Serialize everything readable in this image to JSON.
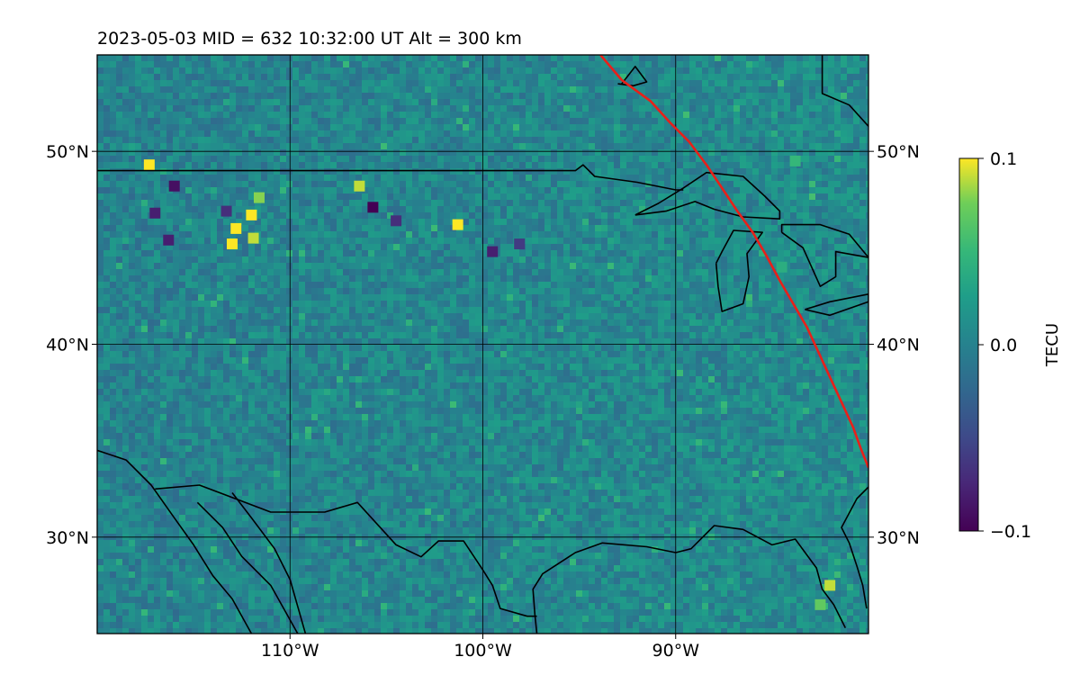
{
  "chart_data": {
    "type": "heatmap",
    "title": "2023-05-03  MID = 632    10:32:00  UT  Alt = 300 km",
    "x_range": [
      -120,
      -80
    ],
    "y_range": [
      25,
      55
    ],
    "x_ticks": [
      {
        "value": -110,
        "label": "110°W"
      },
      {
        "value": -100,
        "label": "100°W"
      },
      {
        "value": -90,
        "label": "90°W"
      }
    ],
    "y_ticks": [
      {
        "value": 50,
        "label": "50°N"
      },
      {
        "value": 40,
        "label": "40°N"
      },
      {
        "value": 30,
        "label": "30°N"
      }
    ],
    "grid": true,
    "colorbar": {
      "label": "TECU",
      "range": [
        -0.1,
        0.1
      ],
      "ticks": [
        {
          "value": 0.1,
          "label": "0.1"
        },
        {
          "value": 0.0,
          "label": "0.0"
        },
        {
          "value": -0.1,
          "label": "−0.1"
        }
      ],
      "colormap": "viridis"
    },
    "terminator": {
      "color": "#e8201a",
      "points": [
        [
          -93.9,
          55
        ],
        [
          -92.8,
          53.7
        ],
        [
          -91.3,
          52.6
        ],
        [
          -90.3,
          51.5
        ],
        [
          -89.3,
          50.5
        ],
        [
          -88.4,
          49.3
        ],
        [
          -87.6,
          48.1
        ],
        [
          -86.8,
          46.9
        ],
        [
          -86.0,
          45.8
        ],
        [
          -85.3,
          44.6
        ],
        [
          -84.6,
          43.3
        ],
        [
          -83.9,
          42.1
        ],
        [
          -83.2,
          40.9
        ],
        [
          -82.6,
          39.6
        ],
        [
          -82.0,
          38.3
        ],
        [
          -81.4,
          37.0
        ],
        [
          -80.8,
          35.7
        ],
        [
          -80.4,
          34.6
        ],
        [
          -80.0,
          33.6
        ]
      ]
    },
    "anomalies": [
      {
        "lon": -117.3,
        "lat": 49.3,
        "value": 0.1
      },
      {
        "lon": -112.8,
        "lat": 46.0,
        "value": 0.1
      },
      {
        "lon": -112.0,
        "lat": 46.7,
        "value": 0.1
      },
      {
        "lon": -113.0,
        "lat": 45.2,
        "value": 0.1
      },
      {
        "lon": -111.9,
        "lat": 45.5,
        "value": 0.09
      },
      {
        "lon": -111.6,
        "lat": 47.6,
        "value": 0.08
      },
      {
        "lon": -106.4,
        "lat": 48.2,
        "value": 0.09
      },
      {
        "lon": -101.3,
        "lat": 46.2,
        "value": 0.1
      },
      {
        "lon": -105.7,
        "lat": 47.1,
        "value": -0.1
      },
      {
        "lon": -116.0,
        "lat": 48.2,
        "value": -0.09
      },
      {
        "lon": -117.0,
        "lat": 46.8,
        "value": -0.08
      },
      {
        "lon": -116.3,
        "lat": 45.4,
        "value": -0.08
      },
      {
        "lon": -113.3,
        "lat": 46.9,
        "value": -0.07
      },
      {
        "lon": -104.5,
        "lat": 46.4,
        "value": -0.07
      },
      {
        "lon": -99.5,
        "lat": 44.8,
        "value": -0.08
      },
      {
        "lon": -98.1,
        "lat": 45.2,
        "value": -0.06
      },
      {
        "lon": -82.0,
        "lat": 27.5,
        "value": 0.09
      },
      {
        "lon": -82.5,
        "lat": 26.5,
        "value": 0.07
      },
      {
        "lon": -83.8,
        "lat": 49.5,
        "value": 0.05
      },
      {
        "lon": -84.5,
        "lat": 44.0,
        "value": 0.04
      }
    ],
    "coastlines": [
      {
        "name": "us-canada-border",
        "points": [
          [
            -120,
            49.0
          ],
          [
            -95.2,
            49.0
          ],
          [
            -94.8,
            49.3
          ],
          [
            -94.2,
            48.7
          ],
          [
            -92.0,
            48.4
          ],
          [
            -90.0,
            48.0
          ],
          [
            -89.6,
            48.0
          ]
        ]
      },
      {
        "name": "hudson-bay-coast",
        "points": [
          [
            -92.8,
            53.5
          ],
          [
            -92.1,
            54.4
          ],
          [
            -91.5,
            53.6
          ],
          [
            -92.2,
            53.4
          ],
          [
            -93.0,
            53.5
          ]
        ]
      },
      {
        "name": "james-bay-coast",
        "points": [
          [
            -82.4,
            55
          ],
          [
            -82.4,
            53.0
          ],
          [
            -81.0,
            52.4
          ],
          [
            -80.0,
            51.3
          ]
        ]
      },
      {
        "name": "lake-superior",
        "points": [
          [
            -92.1,
            46.7
          ],
          [
            -90.5,
            46.9
          ],
          [
            -89.0,
            47.4
          ],
          [
            -88.0,
            47.0
          ],
          [
            -86.5,
            46.6
          ],
          [
            -84.6,
            46.5
          ],
          [
            -84.6,
            46.9
          ],
          [
            -85.4,
            47.7
          ],
          [
            -86.5,
            48.7
          ],
          [
            -88.4,
            48.9
          ],
          [
            -89.6,
            48.1
          ],
          [
            -90.9,
            47.3
          ],
          [
            -92.1,
            46.7
          ]
        ]
      },
      {
        "name": "lake-michigan",
        "points": [
          [
            -87.9,
            44.2
          ],
          [
            -87.8,
            43.0
          ],
          [
            -87.6,
            41.7
          ],
          [
            -86.5,
            42.1
          ],
          [
            -86.2,
            43.5
          ],
          [
            -86.3,
            44.7
          ],
          [
            -85.5,
            45.8
          ],
          [
            -87.0,
            45.9
          ],
          [
            -87.6,
            44.8
          ],
          [
            -87.9,
            44.2
          ]
        ]
      },
      {
        "name": "lake-huron",
        "points": [
          [
            -84.5,
            45.8
          ],
          [
            -83.4,
            45.0
          ],
          [
            -82.5,
            43.0
          ],
          [
            -81.7,
            43.5
          ],
          [
            -81.7,
            44.8
          ],
          [
            -80.0,
            44.5
          ],
          [
            -81.0,
            45.7
          ],
          [
            -82.5,
            46.2
          ],
          [
            -84.5,
            46.2
          ],
          [
            -84.5,
            45.8
          ]
        ]
      },
      {
        "name": "lake-erie",
        "points": [
          [
            -83.3,
            41.8
          ],
          [
            -82.0,
            41.5
          ],
          [
            -80.0,
            42.2
          ],
          [
            -80.0,
            42.6
          ],
          [
            -82.0,
            42.2
          ],
          [
            -83.3,
            41.8
          ]
        ]
      },
      {
        "name": "us-mexico-border",
        "points": [
          [
            -117.0,
            32.5
          ],
          [
            -114.7,
            32.7
          ],
          [
            -111.0,
            31.3
          ],
          [
            -108.2,
            31.3
          ],
          [
            -106.5,
            31.8
          ],
          [
            -104.5,
            29.6
          ],
          [
            -103.2,
            28.98
          ],
          [
            -102.3,
            29.8
          ],
          [
            -101.0,
            29.8
          ],
          [
            -100.0,
            28.3
          ],
          [
            -99.5,
            27.5
          ],
          [
            -99.1,
            26.3
          ],
          [
            -97.7,
            25.9
          ],
          [
            -97.2,
            25.9
          ]
        ]
      },
      {
        "name": "gulf-coast",
        "points": [
          [
            -97.2,
            25.0
          ],
          [
            -97.3,
            26.0
          ],
          [
            -97.4,
            27.3
          ],
          [
            -96.9,
            28.1
          ],
          [
            -95.2,
            29.2
          ],
          [
            -93.8,
            29.7
          ],
          [
            -91.5,
            29.5
          ],
          [
            -90.0,
            29.2
          ],
          [
            -89.2,
            29.4
          ],
          [
            -88.0,
            30.6
          ],
          [
            -86.5,
            30.4
          ],
          [
            -85.0,
            29.6
          ],
          [
            -83.8,
            29.9
          ],
          [
            -82.7,
            28.4
          ],
          [
            -82.4,
            27.3
          ],
          [
            -81.8,
            26.5
          ],
          [
            -81.2,
            25.3
          ]
        ]
      },
      {
        "name": "florida-atlantic-coast",
        "points": [
          [
            -80.1,
            26.3
          ],
          [
            -80.3,
            27.5
          ],
          [
            -80.6,
            28.5
          ],
          [
            -81.0,
            29.7
          ],
          [
            -81.4,
            30.5
          ],
          [
            -80.6,
            32.0
          ],
          [
            -80.0,
            32.6
          ]
        ]
      },
      {
        "name": "pacific-coast",
        "points": [
          [
            -120,
            34.5
          ],
          [
            -118.5,
            34.0
          ],
          [
            -117.2,
            32.7
          ],
          [
            -116.0,
            31.0
          ],
          [
            -115.0,
            29.6
          ],
          [
            -114.0,
            28.0
          ],
          [
            -113.0,
            26.8
          ],
          [
            -112.0,
            25.0
          ]
        ]
      },
      {
        "name": "gulf-of-california",
        "points": [
          [
            -114.8,
            31.8
          ],
          [
            -113.5,
            30.5
          ],
          [
            -112.5,
            29.0
          ],
          [
            -111.0,
            27.5
          ],
          [
            -109.6,
            25.0
          ]
        ]
      },
      {
        "name": "sierra-madre-edge",
        "points": [
          [
            -113.0,
            32.3
          ],
          [
            -112.0,
            31.0
          ],
          [
            -110.8,
            29.4
          ],
          [
            -110.0,
            27.8
          ],
          [
            -109.2,
            25.0
          ]
        ]
      }
    ]
  }
}
